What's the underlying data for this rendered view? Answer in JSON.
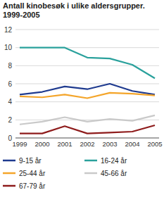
{
  "chart_data": {
    "type": "line",
    "title": "Antall kinobesøk i ulike aldersgrupper. 1999-2005",
    "categories": [
      "1999",
      "2000",
      "2001",
      "2002",
      "2003",
      "2004",
      "2005"
    ],
    "series": [
      {
        "name": "9-15 år",
        "color": "#1f3b8f",
        "values": [
          4.8,
          5.1,
          5.7,
          5.4,
          6.0,
          5.2,
          4.8
        ]
      },
      {
        "name": "16-24 år",
        "color": "#2aa19c",
        "values": [
          10.0,
          10.0,
          10.0,
          8.9,
          8.8,
          8.1,
          6.6
        ]
      },
      {
        "name": "25-44 år",
        "color": "#f4a52a",
        "values": [
          4.6,
          4.5,
          4.8,
          4.4,
          5.0,
          4.9,
          4.7
        ]
      },
      {
        "name": "45-66 år",
        "color": "#c9c9c9",
        "values": [
          1.5,
          1.8,
          2.3,
          1.8,
          2.1,
          1.9,
          2.5
        ]
      },
      {
        "name": "67-79 år",
        "color": "#8e1b1b",
        "values": [
          0.5,
          0.5,
          1.3,
          0.5,
          0.6,
          0.7,
          1.4
        ]
      }
    ],
    "ylim": [
      0,
      12
    ],
    "yticks": [
      0,
      2,
      4,
      6,
      8,
      10,
      12
    ],
    "grid": true,
    "legend": "bottom"
  }
}
